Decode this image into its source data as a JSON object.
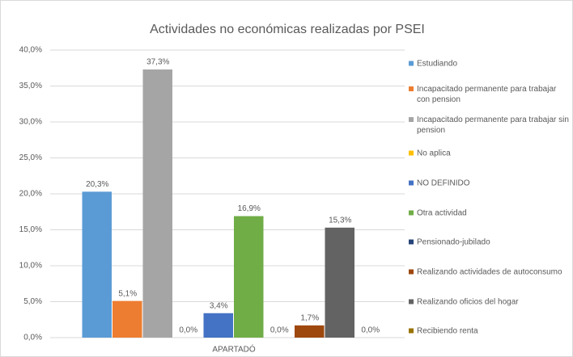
{
  "chart_data": {
    "type": "bar",
    "title": "Actividades no económicas realizadas por PSEI",
    "categories": [
      "APARTADÓ"
    ],
    "series": [
      {
        "name": "Estudiando",
        "color": "#5b9bd5",
        "values": [
          20.3
        ],
        "value_labels": [
          "20,3%"
        ]
      },
      {
        "name": "Incapacitado permanente para trabajar con pension",
        "color": "#ed7d31",
        "values": [
          5.1
        ],
        "value_labels": [
          "5,1%"
        ]
      },
      {
        "name": "Incapacitado permanente para trabajar sin pension",
        "color": "#a5a5a5",
        "values": [
          37.3
        ],
        "value_labels": [
          "37,3%"
        ]
      },
      {
        "name": "No aplica",
        "color": "#ffc000",
        "values": [
          0.0
        ],
        "value_labels": [
          "0,0%"
        ]
      },
      {
        "name": "NO DEFINIDO",
        "color": "#4472c4",
        "values": [
          3.4
        ],
        "value_labels": [
          "3,4%"
        ]
      },
      {
        "name": "Otra actividad",
        "color": "#70ad47",
        "values": [
          16.9
        ],
        "value_labels": [
          "16,9%"
        ]
      },
      {
        "name": "Pensionado-jubilado",
        "color": "#264478",
        "values": [
          0.0
        ],
        "value_labels": [
          "0,0%"
        ]
      },
      {
        "name": "Realizando actividades de autoconsumo",
        "color": "#9e480e",
        "values": [
          1.7
        ],
        "value_labels": [
          "1,7%"
        ]
      },
      {
        "name": "Realizando oficios del hogar",
        "color": "#636363",
        "values": [
          15.3
        ],
        "value_labels": [
          "15,3%"
        ]
      },
      {
        "name": "Recibiendo renta",
        "color": "#997300",
        "values": [
          0.0
        ],
        "value_labels": [
          "0,0%"
        ]
      }
    ],
    "ylim": [
      0,
      40
    ],
    "yticks": [
      {
        "value": 0,
        "label": "0,0%"
      },
      {
        "value": 5,
        "label": "5,0%"
      },
      {
        "value": 10,
        "label": "10,0%"
      },
      {
        "value": 15,
        "label": "15,0%"
      },
      {
        "value": 20,
        "label": "20,0%"
      },
      {
        "value": 25,
        "label": "25,0%"
      },
      {
        "value": 30,
        "label": "30,0%"
      },
      {
        "value": 35,
        "label": "35,0%"
      },
      {
        "value": 40,
        "label": "40,0%"
      }
    ],
    "grid": true,
    "legend": "right"
  }
}
